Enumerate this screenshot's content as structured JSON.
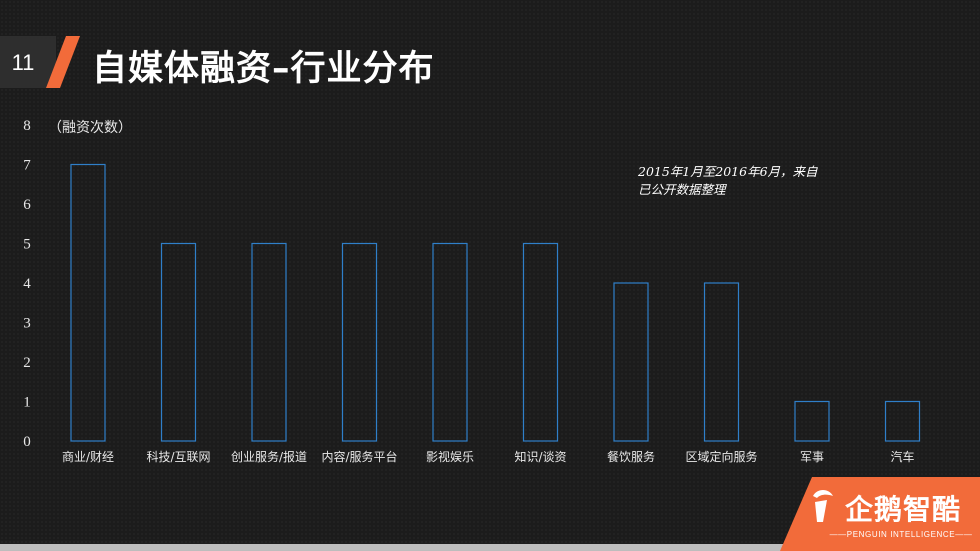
{
  "slide": {
    "number": "11",
    "title": "自媒体融资–行业分布"
  },
  "colors": {
    "accent": "#f26b3a",
    "bar_stroke": "#2f7fc9",
    "background": "#1c1c1c"
  },
  "annotation": {
    "line1": "2015年1月至2016年6月，来自",
    "line2": "已公开数据整理"
  },
  "logo": {
    "text": "企鹅智酷",
    "subtext": "——PENGUIN INTELLIGENCE——",
    "icon": "penguin-logo-icon"
  },
  "chart_data": {
    "type": "bar",
    "title": "",
    "ylabel": "（融资次数）",
    "xlabel": "",
    "ylim": [
      0,
      8
    ],
    "yticks": [
      0,
      1,
      2,
      3,
      4,
      5,
      6,
      7,
      8
    ],
    "grid": false,
    "categories": [
      "商业/财经",
      "科技/互联网",
      "创业服务/报道",
      "内容/服务平台",
      "影视娱乐",
      "知识/谈资",
      "餐饮服务",
      "区域定向服务",
      "军事",
      "汽车"
    ],
    "values": [
      7,
      5,
      5,
      5,
      5,
      5,
      4,
      4,
      1,
      1
    ]
  }
}
